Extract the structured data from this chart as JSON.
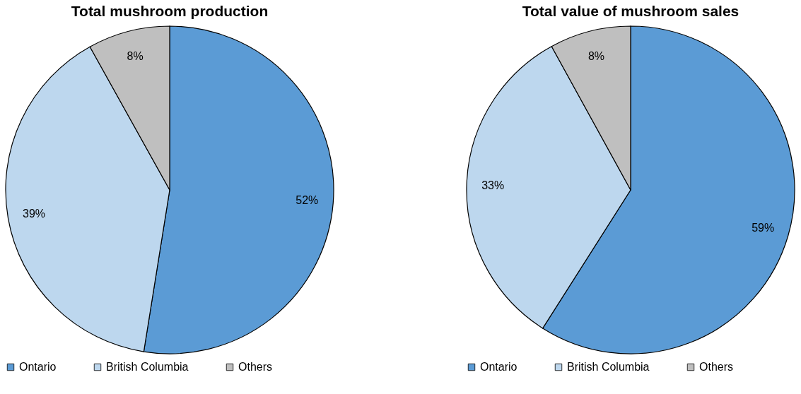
{
  "chart_data": [
    {
      "type": "pie",
      "title": "Total mushroom production",
      "categories": [
        "Ontario",
        "British Columbia",
        "Others"
      ],
      "values": [
        52,
        39,
        8
      ],
      "colors": [
        "#5b9bd5",
        "#bdd7ee",
        "#bfbfbf"
      ],
      "value_labels": [
        "52%",
        "39%",
        "8%"
      ],
      "legend": "bottom"
    },
    {
      "type": "pie",
      "title": "Total value of mushroom sales",
      "categories": [
        "Ontario",
        "British Columbia",
        "Others"
      ],
      "values": [
        59,
        33,
        8
      ],
      "colors": [
        "#5b9bd5",
        "#bdd7ee",
        "#bfbfbf"
      ],
      "value_labels": [
        "59%",
        "33%",
        "8%"
      ],
      "legend": "bottom"
    }
  ]
}
